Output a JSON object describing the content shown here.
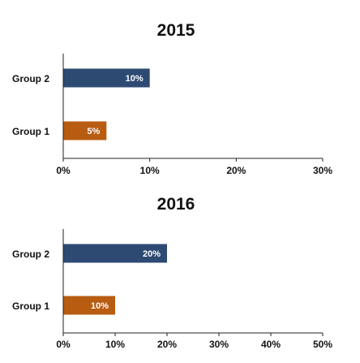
{
  "chart_data": [
    {
      "type": "bar",
      "orientation": "horizontal",
      "title": "2015",
      "categories": [
        "Group 2",
        "Group 1"
      ],
      "values": [
        10,
        5
      ],
      "data_labels": [
        "10%",
        "5%"
      ],
      "bar_colors": [
        "#2d4a72",
        "#b85c12"
      ],
      "xlim": [
        0,
        30
      ],
      "x_ticks": [
        "0%",
        "10%",
        "20%",
        "30%"
      ],
      "xlabel": "",
      "ylabel": "",
      "grid": false,
      "legend": "none"
    },
    {
      "type": "bar",
      "orientation": "horizontal",
      "title": "2016",
      "categories": [
        "Group 2",
        "Group 1"
      ],
      "values": [
        20,
        10
      ],
      "data_labels": [
        "20%",
        "10%"
      ],
      "bar_colors": [
        "#2d4a72",
        "#b85c12"
      ],
      "xlim": [
        0,
        50
      ],
      "x_ticks": [
        "0%",
        "10%",
        "20%",
        "30%",
        "40%",
        "50%"
      ],
      "xlabel": "",
      "ylabel": "",
      "grid": false,
      "legend": "none"
    }
  ],
  "colors": {
    "group2": "#2d4a72",
    "group1": "#b85c12",
    "axis": "#222222",
    "label_text": "#ffffff"
  }
}
